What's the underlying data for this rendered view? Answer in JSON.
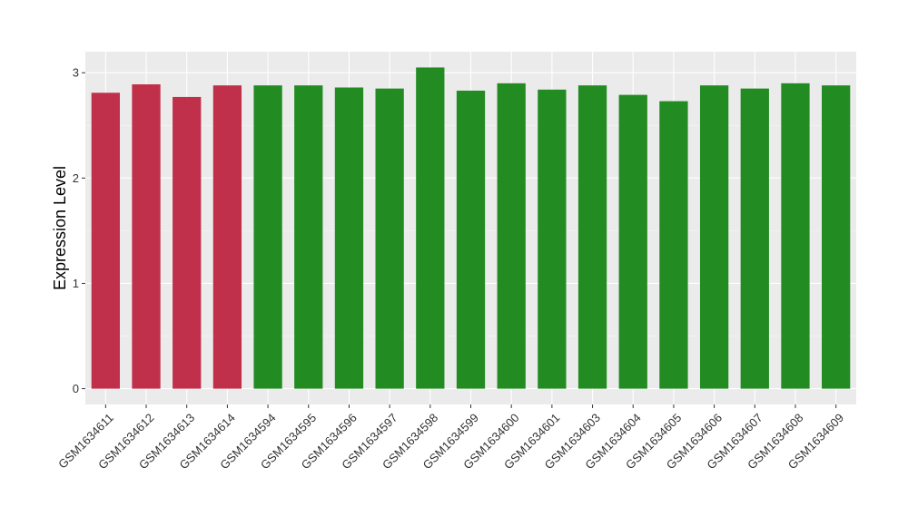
{
  "chart_data": {
    "type": "bar",
    "ylabel": "Expression Level",
    "xlabel": "",
    "ylim": [
      -0.15,
      3.2
    ],
    "yticks": [
      0,
      1,
      2,
      3
    ],
    "grid": true,
    "panel_background": "#EBEBEB",
    "categories": [
      "GSM1634611",
      "GSM1634612",
      "GSM1634613",
      "GSM1634614",
      "GSM1634594",
      "GSM1634595",
      "GSM1634596",
      "GSM1634597",
      "GSM1634598",
      "GSM1634599",
      "GSM1634600",
      "GSM1634601",
      "GSM1634603",
      "GSM1634604",
      "GSM1634605",
      "GSM1634606",
      "GSM1634607",
      "GSM1634608",
      "GSM1634609"
    ],
    "values": [
      2.81,
      2.89,
      2.77,
      2.88,
      2.88,
      2.88,
      2.86,
      2.85,
      3.05,
      2.83,
      2.9,
      2.84,
      2.88,
      2.79,
      2.73,
      2.88,
      2.85,
      2.9,
      2.88
    ],
    "bar_colors": [
      "#C0304A",
      "#C0304A",
      "#C0304A",
      "#C0304A",
      "#228B22",
      "#228B22",
      "#228B22",
      "#228B22",
      "#228B22",
      "#228B22",
      "#228B22",
      "#228B22",
      "#228B22",
      "#228B22",
      "#228B22",
      "#228B22",
      "#228B22",
      "#228B22",
      "#228B22"
    ]
  }
}
